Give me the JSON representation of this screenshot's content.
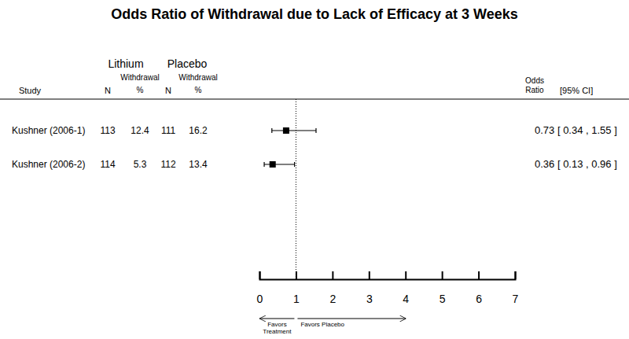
{
  "chart_data": {
    "type": "forest",
    "title": "Odds Ratio of Withdrawal due to Lack of Efficacy at 3 Weeks",
    "headers": {
      "study": "Study",
      "treatment": "Lithium",
      "control": "Placebo",
      "n": "N",
      "withdrawal": "Withdrawal %",
      "odds_ratio": "Odds Ratio",
      "ci": "[95% CI]"
    },
    "categories": [
      "Kushner (2006-1)",
      "Kushner (2006-2)"
    ],
    "treatment_n": [
      113,
      114
    ],
    "treatment_withdrawal": [
      12.4,
      5.3
    ],
    "control_n": [
      111,
      112
    ],
    "control_withdrawal": [
      16.2,
      13.4
    ],
    "values": [
      0.73,
      0.36
    ],
    "lower": [
      0.34,
      0.13
    ],
    "upper": [
      1.55,
      0.96
    ],
    "value_labels": [
      "0.73 [ 0.34 , 1.55 ]",
      "0.36 [ 0.13 , 0.96 ]"
    ],
    "reference": 1,
    "xlim": [
      0,
      7
    ],
    "xticks": [
      0,
      1,
      2,
      3,
      4,
      5,
      6,
      7
    ],
    "annotations": [
      "Favors Treatment",
      "Favors Placebo"
    ]
  }
}
